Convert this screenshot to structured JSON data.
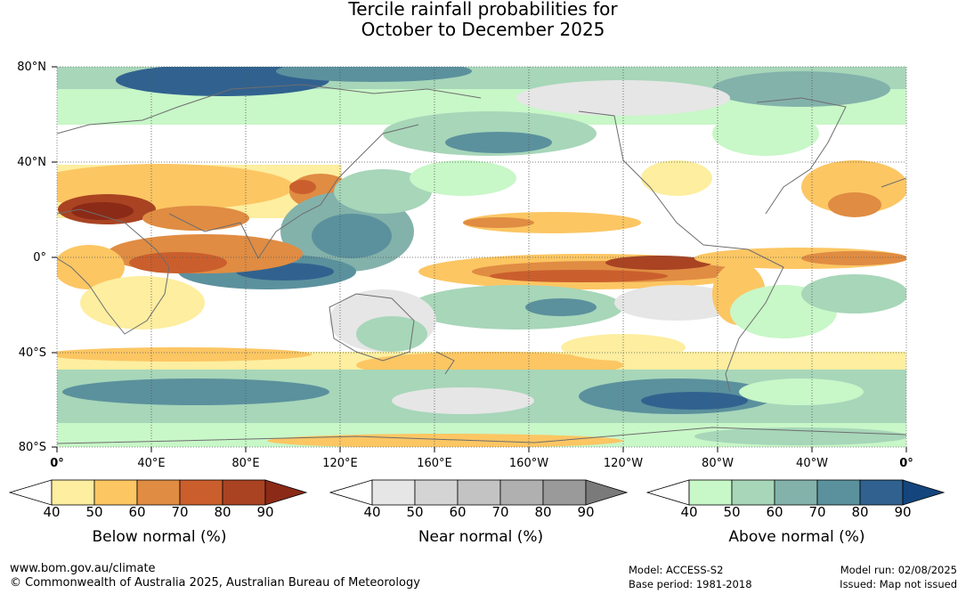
{
  "title": {
    "line1": "Tercile rainfall probabilities for",
    "line2": "October to December 2025"
  },
  "map": {
    "lat_labels": [
      "80°N",
      "40°N",
      "0°",
      "40°S",
      "80°S"
    ],
    "lon_labels": [
      "0°",
      "40°E",
      "80°E",
      "120°E",
      "160°E",
      "160°W",
      "120°W",
      "80°W",
      "40°W",
      "0°"
    ],
    "colors": {
      "ocean_base": "#ffffff",
      "coast": "#6e6e6e",
      "grid": "#555555"
    }
  },
  "colorbars": [
    {
      "title": "Below normal (%)",
      "ticks": [
        "40",
        "50",
        "60",
        "70",
        "80",
        "90"
      ],
      "colors": [
        "#ffffff",
        "#fdeea0",
        "#fcc663",
        "#e08c43",
        "#ca5f2d",
        "#a94322",
        "#8b2a17"
      ]
    },
    {
      "title": "Near normal (%)",
      "ticks": [
        "40",
        "50",
        "60",
        "70",
        "80",
        "90"
      ],
      "colors": [
        "#ffffff",
        "#e6e6e6",
        "#d4d4d4",
        "#c3c3c3",
        "#b0b0b0",
        "#9a9a9a",
        "#7a7a7a"
      ]
    },
    {
      "title": "Above normal (%)",
      "ticks": [
        "40",
        "50",
        "60",
        "70",
        "80",
        "90"
      ],
      "colors": [
        "#ffffff",
        "#c8f7c8",
        "#a7d6b9",
        "#83b2ab",
        "#5b919d",
        "#31628f",
        "#14457d"
      ]
    }
  ],
  "footer": {
    "url": "www.bom.gov.au/climate",
    "copyright": "© Commonwealth of Australia 2025, Australian Bureau of Meteorology",
    "model": "Model: ACCESS-S2",
    "base_period": "Base period: 1981-2018",
    "model_run": "Model run: 02/08/2025",
    "issued": "Issued: Map not issued"
  }
}
